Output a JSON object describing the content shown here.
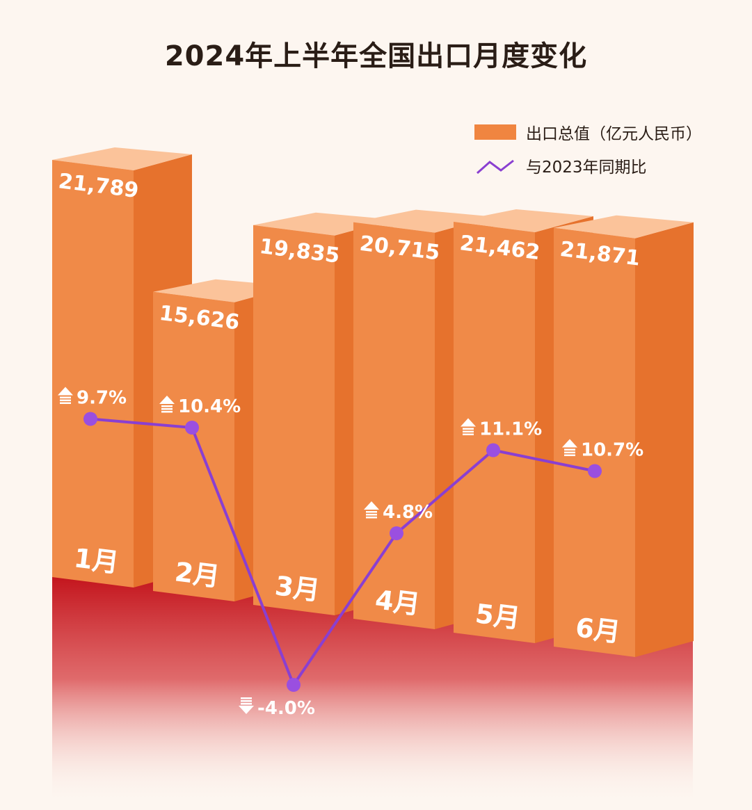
{
  "title": "2024年上半年全国出口月度变化",
  "legend": {
    "bar": "出口总值（亿元人民币）",
    "line": "与2023年同期比"
  },
  "colors": {
    "front": "#f08a48",
    "side": "#e6722d",
    "top": "#fbc39a",
    "line": "#8a3fd1",
    "dot": "#9a4fe0",
    "red": "#c3141c",
    "bg": "#fdf6f0"
  },
  "chart_data": {
    "type": "bar",
    "title": "2024年上半年全国出口月度变化",
    "categories": [
      "1月",
      "2月",
      "3月",
      "4月",
      "5月",
      "6月"
    ],
    "series": [
      {
        "name": "出口总值（亿元人民币）",
        "type": "bar",
        "values": [
          21789,
          15626,
          19835,
          20715,
          21462,
          21871
        ],
        "labels": [
          "21,789",
          "15,626",
          "19,835",
          "20,715",
          "21,462",
          "21,871"
        ]
      },
      {
        "name": "与2023年同期比",
        "type": "line",
        "unit": "%",
        "values": [
          9.7,
          10.4,
          -4.0,
          4.8,
          11.1,
          10.7
        ],
        "labels": [
          "9.7%",
          "10.4%",
          "-4.0%",
          "4.8%",
          "11.1%",
          "10.7%"
        ]
      }
    ],
    "legend": "top-right",
    "grid": false
  }
}
